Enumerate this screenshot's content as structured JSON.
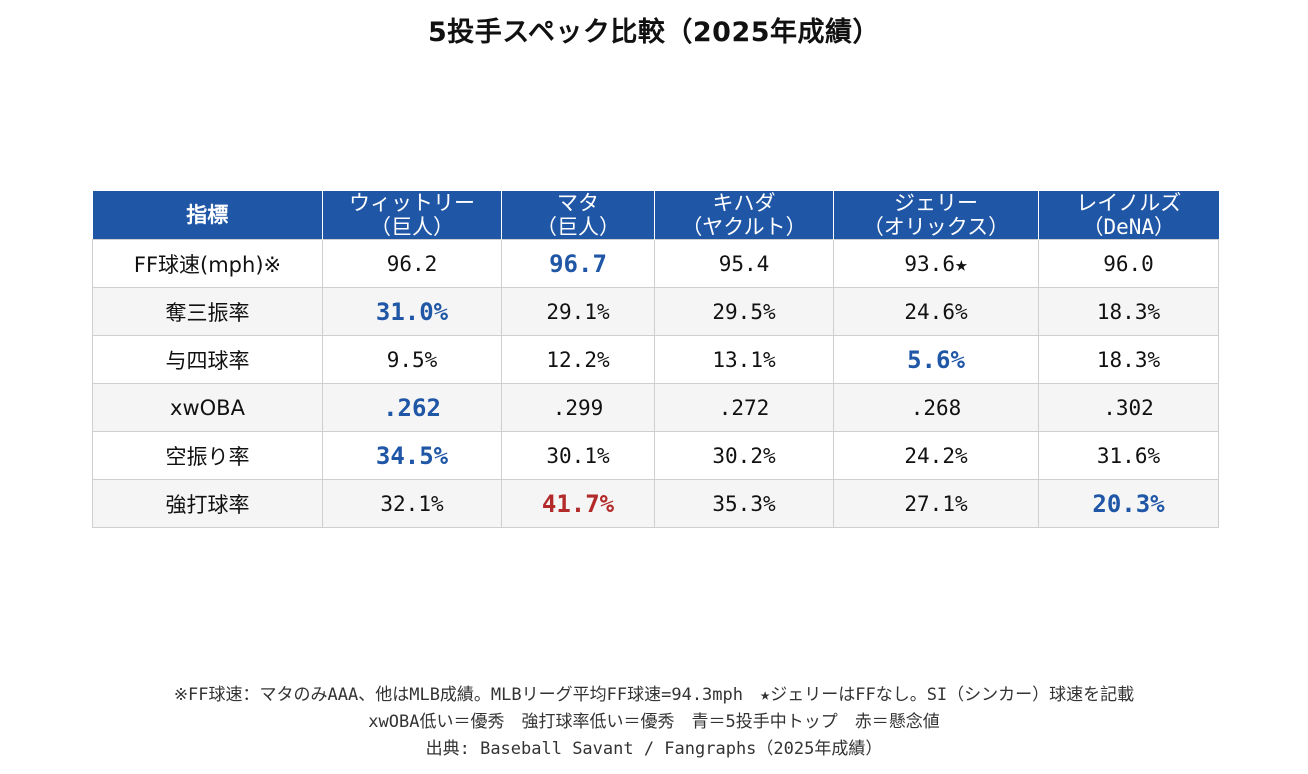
{
  "title": "5投手スペック比較（2025年成績）",
  "header": {
    "metric_label": "指標",
    "pitchers": [
      {
        "name": "ウィットリー",
        "team": "（巨人）"
      },
      {
        "name": "マタ",
        "team": "（巨人）"
      },
      {
        "name": "キハダ",
        "team": "（ヤクルト）"
      },
      {
        "name": "ジェリー",
        "team": "（オリックス）"
      },
      {
        "name": "レイノルズ",
        "team": "（DeNA）"
      }
    ]
  },
  "colors": {
    "header_bg": "#1f56a6",
    "best_text": "#1f56a6",
    "concern_text": "#b22a2a",
    "alt_row_bg": "#f5f5f5"
  },
  "chart_data": {
    "type": "table",
    "title": "5投手スペック比較（2025年成績）",
    "columns": [
      "指標",
      "ウィットリー（巨人）",
      "マタ（巨人）",
      "キハダ（ヤクルト）",
      "ジェリー（オリックス）",
      "レイノルズ（DeNA）"
    ],
    "rows": [
      {
        "metric": "FF球速(mph)※",
        "values": [
          "96.2",
          "96.7",
          "95.4",
          "93.6★",
          "96.0"
        ],
        "highlight": [
          "",
          "best",
          "",
          "",
          ""
        ]
      },
      {
        "metric": "奪三振率",
        "values": [
          "31.0%",
          "29.1%",
          "29.5%",
          "24.6%",
          "18.3%"
        ],
        "highlight": [
          "best",
          "",
          "",
          "",
          ""
        ]
      },
      {
        "metric": "与四球率",
        "values": [
          "9.5%",
          "12.2%",
          "13.1%",
          "5.6%",
          "18.3%"
        ],
        "highlight": [
          "",
          "",
          "",
          "best",
          ""
        ]
      },
      {
        "metric": "xwOBA",
        "values": [
          ".262",
          ".299",
          ".272",
          ".268",
          ".302"
        ],
        "highlight": [
          "best",
          "",
          "",
          "",
          ""
        ]
      },
      {
        "metric": "空振り率",
        "values": [
          "34.5%",
          "30.1%",
          "30.2%",
          "24.2%",
          "31.6%"
        ],
        "highlight": [
          "best",
          "",
          "",
          "",
          ""
        ]
      },
      {
        "metric": "強打球率",
        "values": [
          "32.1%",
          "41.7%",
          "35.3%",
          "27.1%",
          "20.3%"
        ],
        "highlight": [
          "",
          "concern",
          "",
          "",
          "best"
        ]
      }
    ]
  },
  "notes": {
    "line1": "※FF球速：マタのみAAA、他はMLB成績。MLBリーグ平均FF球速=94.3mph　★ジェリーはFFなし。SI（シンカー）球速を記載",
    "line2": "xwOBA低い＝優秀　強打球率低い＝優秀　青＝5投手中トップ　赤＝懸念値",
    "source": "出典: Baseball Savant / Fangraphs（2025年成績）"
  }
}
